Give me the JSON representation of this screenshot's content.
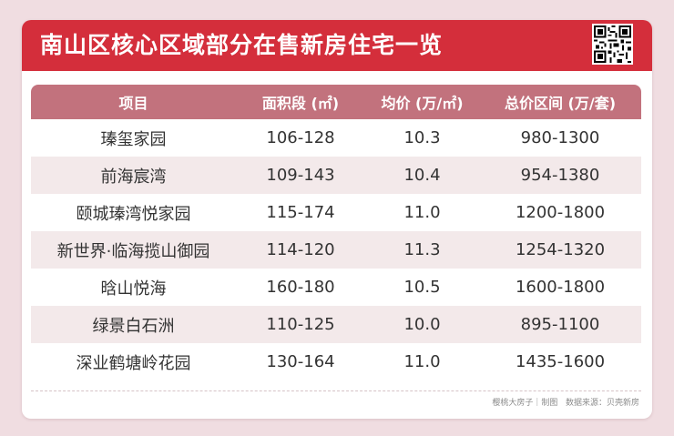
{
  "title": "南山区核心区域部分在售新房住宅一览",
  "table": {
    "headers": [
      "项目",
      "面积段 (㎡)",
      "均价 (万/㎡)",
      "总价区间 (万/套)"
    ],
    "rows": [
      [
        "瑧玺家园",
        "106-128",
        "10.3",
        "980-1300"
      ],
      [
        "前海宸湾",
        "109-143",
        "10.4",
        "954-1380"
      ],
      [
        "颐城瑧湾悦家园",
        "115-174",
        "11.0",
        "1200-1800"
      ],
      [
        "新世界·临海揽山御园",
        "114-120",
        "11.3",
        "1254-1320"
      ],
      [
        "晗山悦海",
        "160-180",
        "10.5",
        "1600-1800"
      ],
      [
        "绿景白石洲",
        "110-125",
        "10.0",
        "895-1100"
      ],
      [
        "深业鹤塘岭花园",
        "130-164",
        "11.0",
        "1435-1600"
      ]
    ]
  },
  "footer": {
    "credit": "樱桃大房子｜制图",
    "source": "数据来源：贝壳新房"
  },
  "colors": {
    "banner": "#d42e3b",
    "header_row": "#c2727d",
    "alt_row": "#f3e9ea",
    "background": "#f0dde1"
  },
  "icons": {
    "qr": "qr-code-icon"
  }
}
